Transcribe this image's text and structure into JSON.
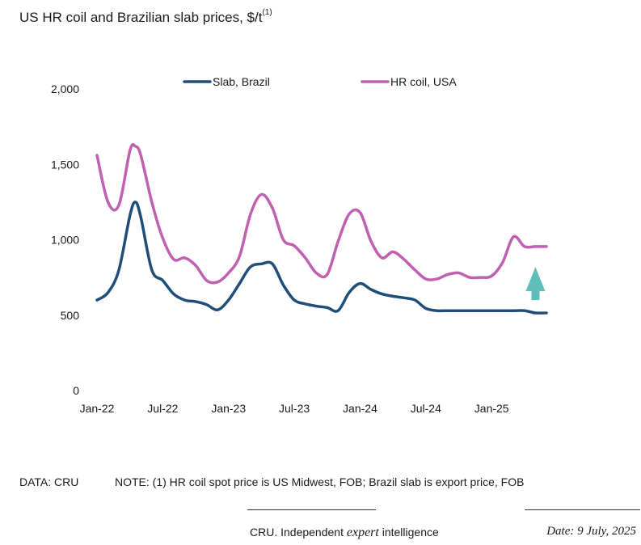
{
  "title": {
    "text": "US HR coil and Brazilian slab prices, $/t",
    "superscript": "(1)"
  },
  "chart_data": {
    "type": "line",
    "title": "US HR coil and Brazilian slab prices, $/t(1)",
    "xlabel": "",
    "ylabel": "",
    "ylim": [
      0,
      2000
    ],
    "yticks": [
      0,
      500,
      1000,
      1500,
      2000
    ],
    "ytick_labels": [
      "0",
      "500",
      "1,000",
      "1,500",
      "2,000"
    ],
    "xlim": [
      0,
      41
    ],
    "xticks": [
      0,
      6,
      12,
      18,
      24,
      30,
      36
    ],
    "xtick_labels": [
      "Jan-22",
      "Jul-22",
      "Jan-23",
      "Jul-23",
      "Jan-24",
      "Jul-24",
      "Jan-25"
    ],
    "x_unit": "months since Jan-22",
    "grid": false,
    "legend_position": "top",
    "series": [
      {
        "name": "Slab, Brazil",
        "color": "#1f4e79",
        "x": [
          0,
          1,
          2,
          3,
          3.5,
          4,
          5,
          6,
          7,
          8,
          9,
          10,
          11,
          12,
          13,
          14,
          15,
          16,
          17,
          18,
          19,
          20,
          21,
          22,
          23,
          24,
          25,
          26,
          27,
          28,
          29,
          30,
          31,
          32,
          33,
          34,
          35,
          36,
          37,
          38,
          39,
          40,
          41
        ],
        "values": [
          600,
          650,
          800,
          1160,
          1250,
          1150,
          800,
          730,
          640,
          600,
          590,
          570,
          535,
          600,
          710,
          820,
          840,
          840,
          700,
          600,
          575,
          560,
          550,
          530,
          650,
          710,
          670,
          640,
          625,
          615,
          600,
          545,
          530,
          530,
          530,
          530,
          530,
          530,
          530,
          530,
          530,
          515,
          515
        ]
      },
      {
        "name": "HR coil, USA",
        "color": "#c060b0",
        "x": [
          0,
          1,
          2,
          3,
          3.5,
          4,
          5,
          6,
          7,
          8,
          9,
          10,
          11,
          12,
          13,
          14,
          15,
          16,
          17,
          18,
          19,
          20,
          21,
          22,
          23,
          24,
          25,
          26,
          27,
          28,
          29,
          30,
          31,
          32,
          33,
          34,
          35,
          36,
          37,
          38,
          39,
          40,
          41
        ],
        "values": [
          1560,
          1250,
          1230,
          1590,
          1620,
          1560,
          1250,
          1010,
          870,
          880,
          830,
          730,
          720,
          780,
          890,
          1170,
          1300,
          1210,
          1000,
          960,
          880,
          780,
          770,
          990,
          1170,
          1180,
          990,
          880,
          920,
          870,
          800,
          740,
          740,
          770,
          780,
          750,
          750,
          760,
          850,
          1020,
          955,
          955,
          955
        ]
      }
    ],
    "annotations": [
      {
        "type": "arrow",
        "direction": "up",
        "color": "#5fbfb8",
        "x": 40,
        "from": 600,
        "to": 820
      }
    ]
  },
  "footer": {
    "data_source": "DATA: CRU",
    "note": "NOTE: (1) HR coil spot price is US Midwest, FOB; Brazil slab is export price, FOB",
    "tagline_before": "CRU. Independent ",
    "tagline_em": "expert",
    "tagline_after": " intelligence",
    "date": "Date: 9 July, 2025"
  }
}
